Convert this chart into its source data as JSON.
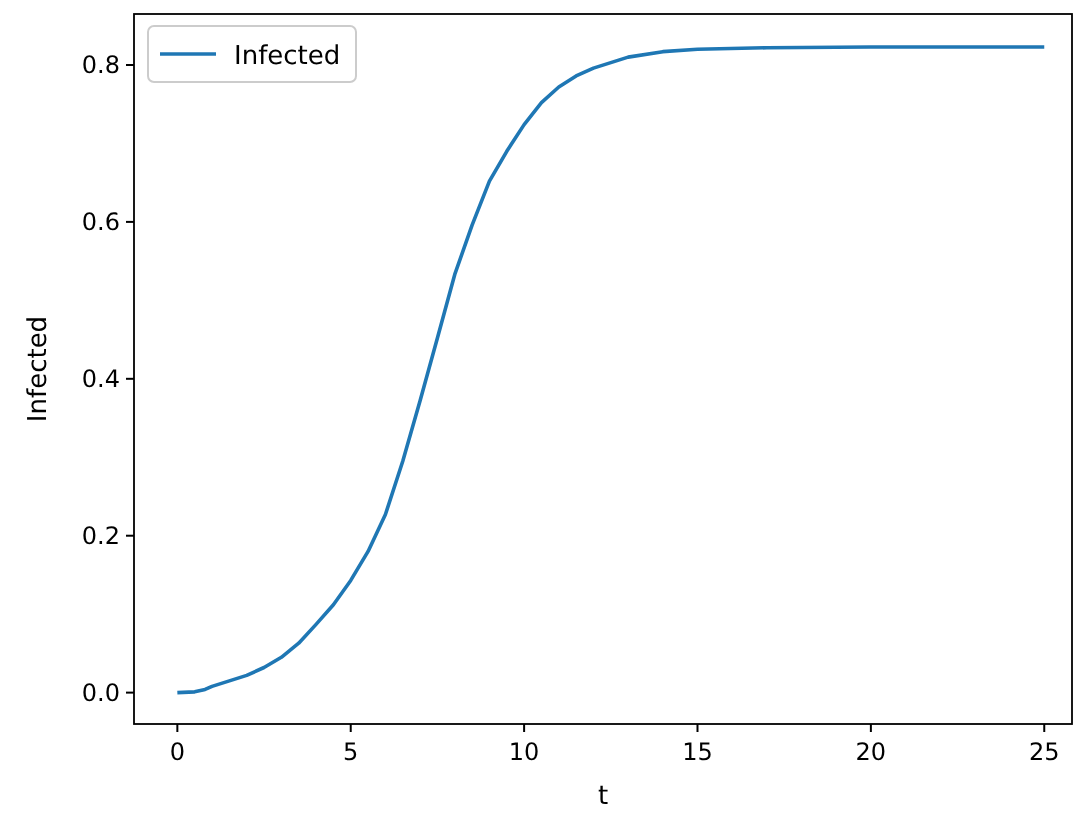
{
  "chart_data": {
    "type": "line",
    "xlabel": "t",
    "ylabel": "Infected",
    "x": [
      0,
      0.5,
      0.8,
      1,
      1.5,
      2,
      2.5,
      3,
      3.5,
      4,
      4.5,
      5,
      5.5,
      6,
      6.5,
      7,
      7.5,
      8,
      8.5,
      9,
      9.5,
      10,
      10.5,
      11,
      11.5,
      12,
      13,
      14,
      15,
      17,
      20,
      25
    ],
    "series": [
      {
        "name": "Infected",
        "color": "#1f77b4",
        "values": [
          0,
          0.001,
          0.004,
          0.008,
          0.015,
          0.022,
          0.032,
          0.045,
          0.063,
          0.087,
          0.112,
          0.143,
          0.18,
          0.227,
          0.295,
          0.372,
          0.452,
          0.533,
          0.596,
          0.652,
          0.69,
          0.724,
          0.752,
          0.772,
          0.786,
          0.796,
          0.81,
          0.817,
          0.82,
          0.822,
          0.823,
          0.823
        ]
      }
    ],
    "xlim": [
      -1.25,
      25.8
    ],
    "ylim": [
      -0.04,
      0.865
    ],
    "xticks": [
      0,
      5,
      10,
      15,
      20,
      25
    ],
    "yticks": [
      {
        "value": 0,
        "label": "0.0"
      },
      {
        "value": 0.2,
        "label": "0.2"
      },
      {
        "value": 0.4,
        "label": "0.4"
      },
      {
        "value": 0.6,
        "label": "0.6"
      },
      {
        "value": 0.8,
        "label": "0.8"
      }
    ],
    "legend": "top left"
  }
}
